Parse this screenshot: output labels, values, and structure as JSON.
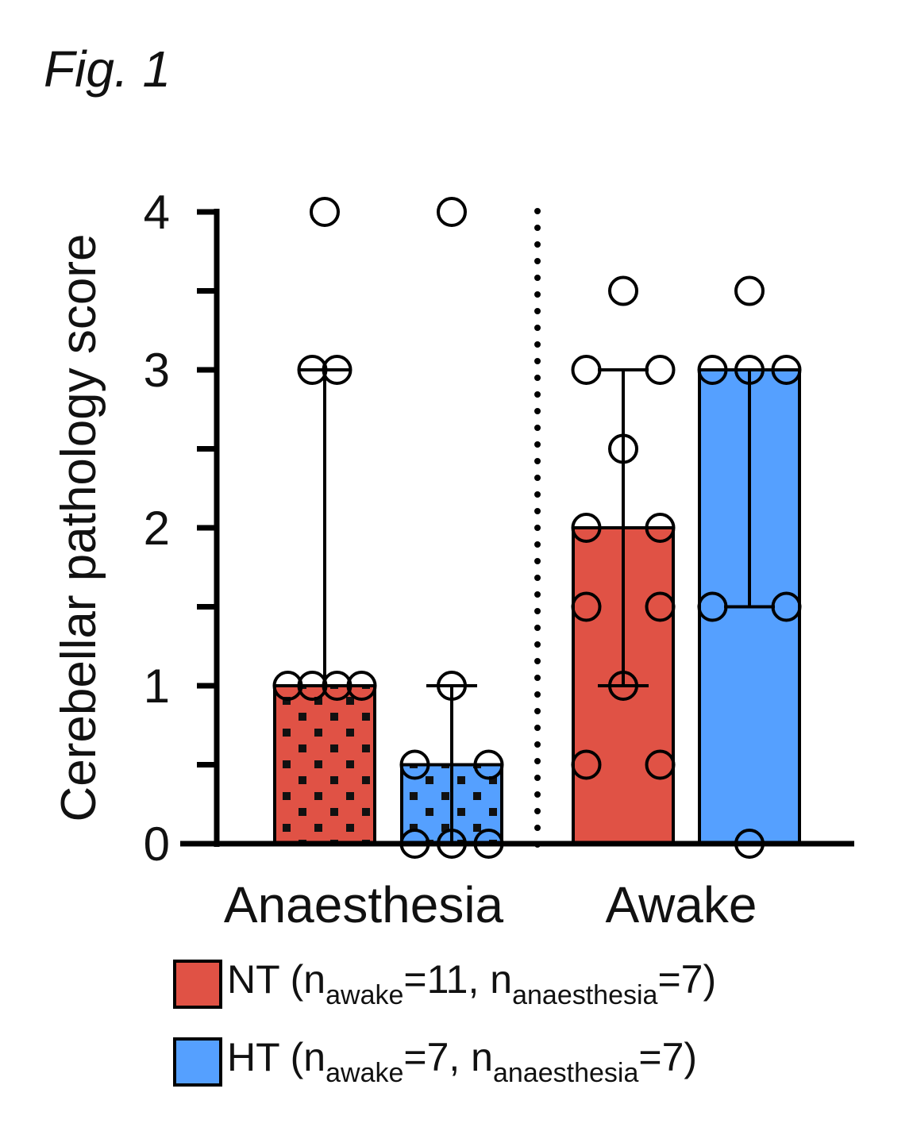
{
  "figure_label": "Fig. 1",
  "chart_data": {
    "type": "bar",
    "ylabel": "Cerebellar pathology score",
    "ylim": [
      0,
      4
    ],
    "yticks": [
      "0",
      "1",
      "2",
      "3",
      "4"
    ],
    "groups": [
      "Anaesthesia",
      "Awake"
    ],
    "series": [
      {
        "name": "NT",
        "color": "#e05245",
        "values": [
          1,
          2
        ],
        "error_low": [
          1,
          1
        ],
        "error_high": [
          3,
          3
        ],
        "points": [
          [
            4,
            3,
            3,
            1,
            1,
            1,
            1
          ],
          [
            3.5,
            3,
            3,
            2.5,
            2,
            2,
            1.5,
            1.5,
            1,
            0.5,
            0.5
          ]
        ]
      },
      {
        "name": "HT",
        "color": "#55a0ff",
        "values": [
          0.5,
          3
        ],
        "error_low": [
          0,
          1.5
        ],
        "error_high": [
          1,
          3
        ],
        "points": [
          [
            4,
            1,
            0.5,
            0.5,
            0,
            0,
            0
          ],
          [
            3.5,
            3,
            3,
            3,
            1.5,
            1.5,
            0
          ]
        ]
      }
    ],
    "pattern_group": "Anaesthesia"
  },
  "legend": [
    {
      "prefix": "NT (n",
      "sub1": "awake",
      "mid": "=11, n",
      "sub2": "anaesthesia",
      "suffix": "=7)",
      "color": "#e05245"
    },
    {
      "prefix": "HT (n",
      "sub1": "awake",
      "mid": "=7, n",
      "sub2": "anaesthesia",
      "suffix": "=7)",
      "color": "#55a0ff"
    }
  ]
}
